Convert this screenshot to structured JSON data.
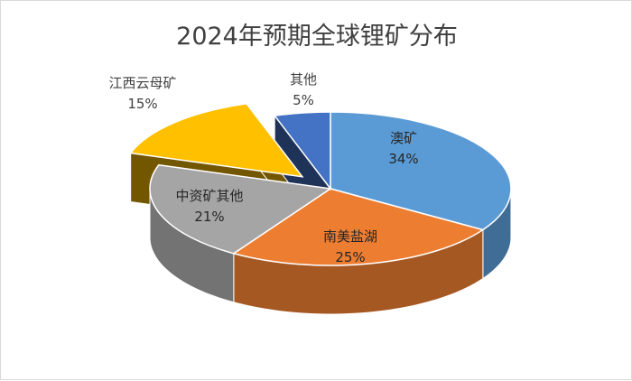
{
  "chart_data": {
    "type": "pie",
    "title": "2024年预期全球锂矿分布",
    "slices": [
      {
        "name": "澳矿",
        "value": 34,
        "label": "34%",
        "color": "#5b9bd5",
        "exploded": false
      },
      {
        "name": "南美盐湖",
        "value": 25,
        "label": "25%",
        "color": "#ed7d31",
        "exploded": false
      },
      {
        "name": "中资矿其他",
        "value": 21,
        "label": "21%",
        "color": "#a5a5a5",
        "exploded": false
      },
      {
        "name": "江西云母矿",
        "value": 15,
        "label": "15%",
        "color": "#ffc000",
        "exploded": true
      },
      {
        "name": "其他",
        "value": 5,
        "label": "5%",
        "color": "#4472c4",
        "exploded": false
      }
    ],
    "legend": "none",
    "style": "3d-pie"
  }
}
